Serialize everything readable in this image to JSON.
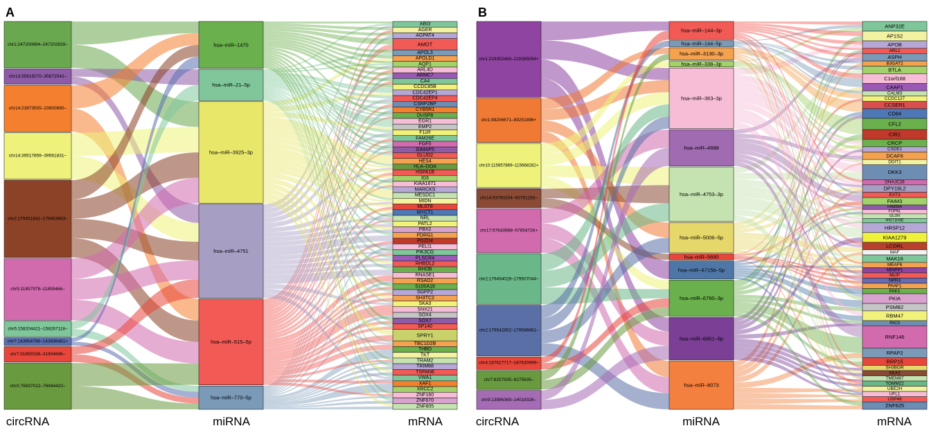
{
  "panels": [
    {
      "letter": "A",
      "axis_labels": [
        "circRNA",
        "miRNA",
        "mRNA"
      ],
      "circrna": [
        {
          "label": "chr1:247200894–247202839–",
          "color": "#6aa84f",
          "weight": 6
        },
        {
          "label": "chr13:35615070–35672542–",
          "color": "#8e5ba6",
          "weight": 2
        },
        {
          "label": "chr14:23873505–23900690–",
          "color": "#f4802f",
          "weight": 6
        },
        {
          "label": "chr14:39517856–39561831–",
          "color": "#eef27a",
          "weight": 6
        },
        {
          "label": "chr2:179451841–17945​3663–",
          "color": "#8b4226",
          "weight": 10
        },
        {
          "label": "chr5:11857978–11859466–",
          "color": "#d26aae",
          "weight": 8
        },
        {
          "label": "chr5:158204421–158267118–",
          "color": "#7fc79a",
          "weight": 2
        },
        {
          "label": "chr7:143904786–143936481+",
          "color": "#5a6fb0",
          "weight": 1
        },
        {
          "label": "chr7:31855538–31904696–",
          "color": "#e8463a",
          "weight": 2
        },
        {
          "label": "chrX:76937012–76944420–",
          "color": "#6a9a40",
          "weight": 6
        }
      ],
      "mirna": [
        {
          "label": "hsa–miR–1470",
          "color": "#6ab04c",
          "weight": 6
        },
        {
          "label": "hsa–miR–21–5p",
          "color": "#7fc79a",
          "weight": 4
        },
        {
          "label": "hsa–miR–3925–3p",
          "color": "#e8e76a",
          "weight": 13
        },
        {
          "label": "hsa–miR–4751",
          "color": "#a79ec4",
          "weight": 12
        },
        {
          "label": "hsa–miR–515–5p",
          "color": "#f25a55",
          "weight": 11
        },
        {
          "label": "hsa–miR–770–5p",
          "color": "#7a9ab8",
          "weight": 3
        }
      ],
      "mrna": [
        {
          "label": "ABI3",
          "color": "#7fc79a",
          "weight": 1
        },
        {
          "label": "AGER",
          "color": "#f2f2a0",
          "weight": 1
        },
        {
          "label": "AGPAT4",
          "color": "#b5a8d6",
          "weight": 1
        },
        {
          "label": "AMOT",
          "color": "#f25a55",
          "weight": 2
        },
        {
          "label": "APOL3",
          "color": "#7a9ab8",
          "weight": 1
        },
        {
          "label": "APOLD1",
          "color": "#f4a150",
          "weight": 1
        },
        {
          "label": "AQP1",
          "color": "#a3d16a",
          "weight": 1
        },
        {
          "label": "ARL4D",
          "color": "#f7bdd6",
          "weight": 1
        },
        {
          "label": "ARMC7",
          "color": "#9b59b6",
          "weight": 1
        },
        {
          "label": "CA4",
          "color": "#7fc79a",
          "weight": 1
        },
        {
          "label": "CCDC85B",
          "color": "#f2f27a",
          "weight": 1
        },
        {
          "label": "CDC42EP1",
          "color": "#b5a8d6",
          "weight": 1
        },
        {
          "label": "CDC42EP4",
          "color": "#f25a55",
          "weight": 1
        },
        {
          "label": "CSRP2BP",
          "color": "#6d8db3",
          "weight": 1
        },
        {
          "label": "CYB5R1",
          "color": "#f4802f",
          "weight": 1
        },
        {
          "label": "DUSP8",
          "color": "#6ab04c",
          "weight": 1
        },
        {
          "label": "EGR1",
          "color": "#f7bdd6",
          "weight": 1
        },
        {
          "label": "EMP2",
          "color": "#c5c5c5",
          "weight": 1
        },
        {
          "label": "F11R",
          "color": "#f2f27a",
          "weight": 1
        },
        {
          "label": "FAM26E",
          "color": "#7fc79a",
          "weight": 1
        },
        {
          "label": "FGF5",
          "color": "#d26aae",
          "weight": 1
        },
        {
          "label": "GIMAP5",
          "color": "#8e5ba6",
          "weight": 1
        },
        {
          "label": "GLUD2",
          "color": "#f25a55",
          "weight": 1
        },
        {
          "label": "HES4",
          "color": "#f4a150",
          "weight": 1
        },
        {
          "label": "HLA–DOA",
          "color": "#6a9a40",
          "weight": 1
        },
        {
          "label": "HSPA1B",
          "color": "#f25a55",
          "weight": 1
        },
        {
          "label": "ID3",
          "color": "#a3d16a",
          "weight": 1
        },
        {
          "label": "KIAA1671",
          "color": "#f7bdd6",
          "weight": 1
        },
        {
          "label": "MARCKS",
          "color": "#b5a8d6",
          "weight": 1
        },
        {
          "label": "MESDC1",
          "color": "#c5e3b0",
          "weight": 1
        },
        {
          "label": "MIDN",
          "color": "#f2f2a0",
          "weight": 1
        },
        {
          "label": "MLST8",
          "color": "#e8463a",
          "weight": 1
        },
        {
          "label": "MYCT1",
          "color": "#4e77b5",
          "weight": 1
        },
        {
          "label": "NRL",
          "color": "#c5e3b0",
          "weight": 1
        },
        {
          "label": "PATL2",
          "color": "#f2f27a",
          "weight": 1
        },
        {
          "label": "PBX2",
          "color": "#d9a3cf",
          "weight": 1
        },
        {
          "label": "PDRG1",
          "color": "#f4a150",
          "weight": 1
        },
        {
          "label": "PDZD4",
          "color": "#c0392b",
          "weight": 1
        },
        {
          "label": "PELI1",
          "color": "#f7bdd6",
          "weight": 1
        },
        {
          "label": "PIK3CG",
          "color": "#7fc79a",
          "weight": 1
        },
        {
          "label": "PLSCR4",
          "color": "#9b59b6",
          "weight": 1
        },
        {
          "label": "RHBDL2",
          "color": "#f25a55",
          "weight": 1
        },
        {
          "label": "RHOB",
          "color": "#6ab04c",
          "weight": 1
        },
        {
          "label": "RNASE1",
          "color": "#f7bdd6",
          "weight": 1
        },
        {
          "label": "RSAD2",
          "color": "#f4a150",
          "weight": 1
        },
        {
          "label": "S100A16",
          "color": "#6ab04c",
          "weight": 1
        },
        {
          "label": "SGPP2",
          "color": "#b5a8d6",
          "weight": 1
        },
        {
          "label": "SH3TC2",
          "color": "#f4a150",
          "weight": 1
        },
        {
          "label": "SKA3",
          "color": "#f2f27a",
          "weight": 1
        },
        {
          "label": "SNX21",
          "color": "#f7bdd6",
          "weight": 1
        },
        {
          "label": "SOX4",
          "color": "#c5c5c5",
          "weight": 1
        },
        {
          "label": "SOX7",
          "color": "#8e5ba6",
          "weight": 1
        },
        {
          "label": "SP140",
          "color": "#f25a55",
          "weight": 1
        },
        {
          "label": "SPRY1",
          "color": "#c9d26a",
          "weight": 2
        },
        {
          "label": "TBC1D2B",
          "color": "#f4a150",
          "weight": 1
        },
        {
          "label": "THBD",
          "color": "#6ab04c",
          "weight": 1
        },
        {
          "label": "TKT",
          "color": "#f2f2a0",
          "weight": 1
        },
        {
          "label": "TRAM2",
          "color": "#c5e3b0",
          "weight": 1
        },
        {
          "label": "TRIM68",
          "color": "#b5a8d6",
          "weight": 1
        },
        {
          "label": "TSPAN6",
          "color": "#f25a55",
          "weight": 1
        },
        {
          "label": "VWA1",
          "color": "#7fc79a",
          "weight": 1
        },
        {
          "label": "XAF1",
          "color": "#f4802f",
          "weight": 1
        },
        {
          "label": "XRCC2",
          "color": "#a3d16a",
          "weight": 1
        },
        {
          "label": "ZNF160",
          "color": "#f7bdd6",
          "weight": 1
        },
        {
          "label": "ZNF670",
          "color": "#d9a3cf",
          "weight": 1
        },
        {
          "label": "ZNF805",
          "color": "#c5e3b0",
          "weight": 1
        }
      ],
      "circ_links": [
        [
          0,
          0
        ],
        [
          0,
          2
        ],
        [
          1,
          1
        ],
        [
          1,
          3
        ],
        [
          2,
          0
        ],
        [
          2,
          4
        ],
        [
          3,
          2
        ],
        [
          3,
          3
        ],
        [
          4,
          0
        ],
        [
          4,
          2
        ],
        [
          4,
          4
        ],
        [
          4,
          3
        ],
        [
          5,
          3
        ],
        [
          5,
          2
        ],
        [
          5,
          4
        ],
        [
          6,
          5
        ],
        [
          6,
          1
        ],
        [
          7,
          0
        ],
        [
          7,
          5
        ],
        [
          8,
          3
        ],
        [
          8,
          5
        ],
        [
          9,
          4
        ],
        [
          9,
          5
        ]
      ]
    },
    {
      "letter": "B",
      "axis_labels": [
        "circRNA",
        "miRNA",
        "mRNA"
      ],
      "circrna": [
        {
          "label": "chr1:219352489–219385094+",
          "color": "#8e44a0",
          "weight": 12
        },
        {
          "label": "chr1:89206671–89251896+",
          "color": "#f07a33",
          "weight": 7
        },
        {
          "label": "chr10:115657869–115668282+",
          "color": "#eef27a",
          "weight": 7
        },
        {
          "label": "chr14:93760204–93761283–",
          "color": "#8b4a35",
          "weight": 3
        },
        {
          "label": "chr17:57643988–57654726+",
          "color": "#d26aae",
          "weight": 7
        },
        {
          "label": "chr2:179494028–179507044–",
          "color": "#6ab889",
          "weight": 8
        },
        {
          "label": "chr2:179542852–179586661–",
          "color": "#5a6fa6",
          "weight": 8
        },
        {
          "label": "chr4:187627717–187630999–",
          "color": "#e8463a",
          "weight": 2
        },
        {
          "label": "chr7:8257935–8275635–",
          "color": "#6a9a40",
          "weight": 3
        },
        {
          "label": "chr9:13986369–14018326–",
          "color": "#a56bb5",
          "weight": 3
        }
      ],
      "mirna": [
        {
          "label": "hsa–miR–144–3p",
          "color": "#f25a55",
          "weight": 3
        },
        {
          "label": "hsa–miR–144–5p",
          "color": "#7a9ab8",
          "weight": 1
        },
        {
          "label": "hsa–miR–3130–3p",
          "color": "#f4a150",
          "weight": 2
        },
        {
          "label": "hsa–miR–338–3p",
          "color": "#a3d16a",
          "weight": 1
        },
        {
          "label": "hsa–miR–363–3p",
          "color": "#f7bdd6",
          "weight": 10
        },
        {
          "label": "hsa–miR–4688",
          "color": "#a06bb0",
          "weight": 6
        },
        {
          "label": "hsa–miR–4753–3p",
          "color": "#c5e3b0",
          "weight": 9
        },
        {
          "label": "hsa–miR–5006–5p",
          "color": "#e6d76a",
          "weight": 5
        },
        {
          "label": "hsa–miR–5690",
          "color": "#e8463a",
          "weight": 1
        },
        {
          "label": "hsa–miR–6715b–5p",
          "color": "#4e77a8",
          "weight": 3
        },
        {
          "label": "hsa–miR–6760–3p",
          "color": "#6ab04c",
          "weight": 6
        },
        {
          "label": "hsa–miR–6851–5p",
          "color": "#7b3f96",
          "weight": 7
        },
        {
          "label": "hsa–miR–8073",
          "color": "#f4803f",
          "weight": 8
        }
      ],
      "mrna": [
        {
          "label": "ANP32E",
          "color": "#7fc79a",
          "weight": 1.3
        },
        {
          "label": "AP1S2",
          "color": "#f2f2a0",
          "weight": 1.3
        },
        {
          "label": "APOB",
          "color": "#b5a8d6",
          "weight": 1
        },
        {
          "label": "ARL1",
          "color": "#f25a55",
          "weight": 0.7
        },
        {
          "label": "ASPH",
          "color": "#7a9ab8",
          "weight": 1
        },
        {
          "label": "B3GAT2",
          "color": "#f4a150",
          "weight": 0.7
        },
        {
          "label": "BTLA",
          "color": "#a3d16a",
          "weight": 1
        },
        {
          "label": "C1orf168",
          "color": "#f7bdd6",
          "weight": 1.3
        },
        {
          "label": "CAAP1",
          "color": "#9b59b6",
          "weight": 1
        },
        {
          "label": "CALM3",
          "color": "#c5e3b0",
          "weight": 0.7
        },
        {
          "label": "CCDC127",
          "color": "#f2f27a",
          "weight": 0.7
        },
        {
          "label": "CCSER1",
          "color": "#d94f4f",
          "weight": 1
        },
        {
          "label": "CD84",
          "color": "#4e77b5",
          "weight": 1.3
        },
        {
          "label": "CFL2",
          "color": "#6ab04c",
          "weight": 1.5
        },
        {
          "label": "CIR1",
          "color": "#c0392b",
          "weight": 1.3
        },
        {
          "label": "CRCP",
          "color": "#6ab04c",
          "weight": 1
        },
        {
          "label": "CSDE1",
          "color": "#b5a8d6",
          "weight": 0.7
        },
        {
          "label": "DCAF6",
          "color": "#f4a150",
          "weight": 1
        },
        {
          "label": "DDIT1",
          "color": "#f2f2a0",
          "weight": 0.7
        },
        {
          "label": "DKK3",
          "color": "#6d8db3",
          "weight": 2
        },
        {
          "label": "DNAJC28",
          "color": "#d26aae",
          "weight": 0.7
        },
        {
          "label": "DPY19L2",
          "color": "#a79ec4",
          "weight": 1
        },
        {
          "label": "EXT3",
          "color": "#f25a55",
          "weight": 0.7
        },
        {
          "label": "FAIM3",
          "color": "#a3d16a",
          "weight": 1
        },
        {
          "label": "FAM89A",
          "color": "#8e5ba6",
          "weight": 0.6
        },
        {
          "label": "FOPNL",
          "color": "#f7bdd6",
          "weight": 0.6
        },
        {
          "label": "GLDN",
          "color": "#c5e3b0",
          "weight": 0.6
        },
        {
          "label": "HIST1H3E",
          "color": "#7fc79a",
          "weight": 0.6
        },
        {
          "label": "HRSP12",
          "color": "#b5a8d6",
          "weight": 1.3
        },
        {
          "label": "KIAA1279",
          "color": "#eef23a",
          "weight": 1.3
        },
        {
          "label": "LCORL",
          "color": "#b7412c",
          "weight": 1
        },
        {
          "label": "MAF",
          "color": "#f2f2f2",
          "weight": 0.7
        },
        {
          "label": "MAK16",
          "color": "#7fc79a",
          "weight": 1
        },
        {
          "label": "MEAF6",
          "color": "#f4a150",
          "weight": 0.7
        },
        {
          "label": "MINPP1",
          "color": "#8e44a0",
          "weight": 0.7
        },
        {
          "label": "MLIP",
          "color": "#f25a55",
          "weight": 0.7
        },
        {
          "label": "NPR3",
          "color": "#6a6ab0",
          "weight": 0.7
        },
        {
          "label": "PAAF1",
          "color": "#f4a150",
          "weight": 0.7
        },
        {
          "label": "PAK1",
          "color": "#6ab04c",
          "weight": 0.7
        },
        {
          "label": "PKIA",
          "color": "#d9a3cf",
          "weight": 1.3
        },
        {
          "label": "PSMB2",
          "color": "#c5c5c5",
          "weight": 1
        },
        {
          "label": "RBM47",
          "color": "#f2f27a",
          "weight": 1.3
        },
        {
          "label": "RIC3",
          "color": "#6d8db3",
          "weight": 0.7
        },
        {
          "label": "RNF146",
          "color": "#d26aae",
          "weight": 3
        },
        {
          "label": "RPAP2",
          "color": "#7a9ab8",
          "weight": 1.3
        },
        {
          "label": "RRP15",
          "color": "#e8463a",
          "weight": 1
        },
        {
          "label": "SH3BGR",
          "color": "#e6d76a",
          "weight": 0.7
        },
        {
          "label": "SKA2",
          "color": "#8b4a35",
          "weight": 0.7
        },
        {
          "label": "TMEM87",
          "color": "#c5e3b0",
          "weight": 0.7
        },
        {
          "label": "TOMM22",
          "color": "#6ab889",
          "weight": 0.7
        },
        {
          "label": "UBE2H",
          "color": "#f2f2a0",
          "weight": 0.7
        },
        {
          "label": "UFL1",
          "color": "#f7bdd6",
          "weight": 0.7
        },
        {
          "label": "USP46",
          "color": "#f25a55",
          "weight": 0.7
        },
        {
          "label": "ZNF625",
          "color": "#6d8db3",
          "weight": 1
        }
      ],
      "circ_links": [
        [
          0,
          0
        ],
        [
          0,
          4
        ],
        [
          0,
          11
        ],
        [
          0,
          9
        ],
        [
          1,
          4
        ],
        [
          1,
          7
        ],
        [
          1,
          12
        ],
        [
          1,
          2
        ],
        [
          2,
          3
        ],
        [
          2,
          4
        ],
        [
          2,
          6
        ],
        [
          2,
          10
        ],
        [
          3,
          6
        ],
        [
          3,
          8
        ],
        [
          4,
          5
        ],
        [
          4,
          11
        ],
        [
          4,
          12
        ],
        [
          5,
          6
        ],
        [
          5,
          10
        ],
        [
          5,
          4
        ],
        [
          6,
          4
        ],
        [
          6,
          7
        ],
        [
          6,
          1
        ],
        [
          6,
          12
        ],
        [
          7,
          10
        ],
        [
          7,
          0
        ],
        [
          8,
          10
        ],
        [
          8,
          2
        ],
        [
          9,
          5
        ],
        [
          9,
          11
        ]
      ]
    }
  ]
}
